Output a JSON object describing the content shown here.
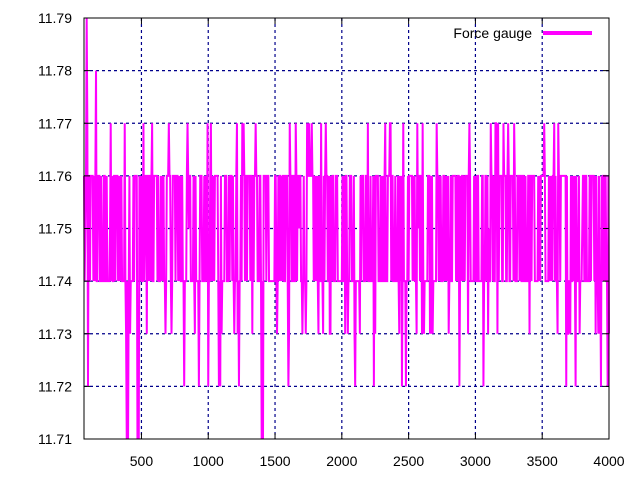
{
  "chart_data": {
    "type": "line",
    "title": "",
    "xlabel": "",
    "ylabel": "",
    "xlim": [
      70,
      4000
    ],
    "ylim": [
      11.71,
      11.79
    ],
    "x_ticks": [
      500,
      1000,
      1500,
      2000,
      2500,
      3000,
      3500,
      4000
    ],
    "y_ticks": [
      11.71,
      11.72,
      11.73,
      11.74,
      11.75,
      11.76,
      11.77,
      11.78,
      11.79
    ],
    "x_tick_labels": [
      "500",
      "1000",
      "1500",
      "2000",
      "2500",
      "3000",
      "3500",
      "4000"
    ],
    "y_tick_labels": [
      "11.71",
      "11.72",
      "11.73",
      "11.74",
      "11.75",
      "11.76",
      "11.77",
      "11.78",
      "11.79"
    ],
    "grid": true,
    "legend_position": "top-right",
    "series": [
      {
        "name": "Force gauge",
        "color": "#ff00ff",
        "x_range": [
          70,
          4000
        ],
        "typical_band": [
          11.74,
          11.76
        ],
        "excursions": [
          {
            "x": 80,
            "y": 11.75
          },
          {
            "x": 90,
            "y": 11.79
          },
          {
            "x": 95,
            "y": 11.72
          },
          {
            "x": 100,
            "y": 11.72
          },
          {
            "x": 160,
            "y": 11.78
          },
          {
            "x": 390,
            "y": 11.71
          },
          {
            "x": 400,
            "y": 11.71
          },
          {
            "x": 470,
            "y": 11.71
          },
          {
            "x": 480,
            "y": 11.71
          },
          {
            "x": 820,
            "y": 11.72
          },
          {
            "x": 930,
            "y": 11.72
          },
          {
            "x": 1000,
            "y": 11.72
          },
          {
            "x": 1080,
            "y": 11.72
          },
          {
            "x": 1090,
            "y": 11.72
          },
          {
            "x": 1230,
            "y": 11.72
          },
          {
            "x": 1400,
            "y": 11.71
          },
          {
            "x": 1410,
            "y": 11.71
          },
          {
            "x": 1600,
            "y": 11.72
          },
          {
            "x": 2100,
            "y": 11.72
          },
          {
            "x": 2240,
            "y": 11.72
          },
          {
            "x": 2450,
            "y": 11.72
          },
          {
            "x": 2480,
            "y": 11.72
          },
          {
            "x": 2880,
            "y": 11.72
          },
          {
            "x": 3060,
            "y": 11.72
          },
          {
            "x": 3680,
            "y": 11.72
          },
          {
            "x": 3750,
            "y": 11.72
          },
          {
            "x": 3940,
            "y": 11.72
          },
          {
            "x": 3990,
            "y": 11.72
          },
          {
            "x": 3100,
            "y": 11.75
          }
        ]
      }
    ]
  }
}
